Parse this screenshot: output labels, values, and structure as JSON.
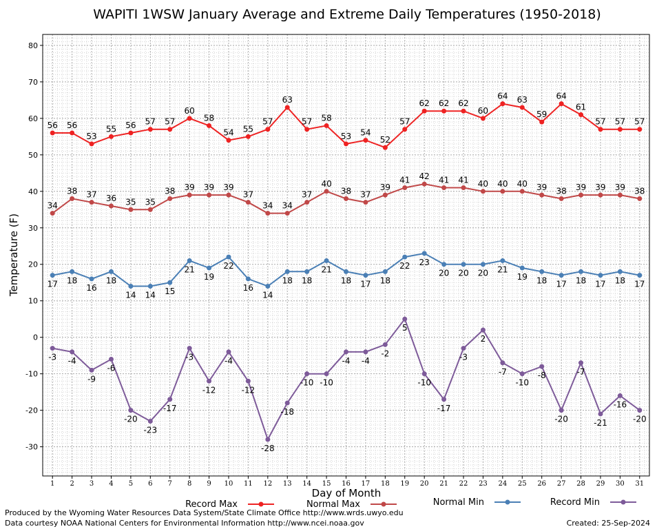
{
  "chart_data": {
    "type": "line",
    "title": "WAPITI 1WSW January Average and Extreme Daily Temperatures (1950-2018)",
    "xlabel": "Day of Month",
    "ylabel": "Temperature (F)",
    "ylim": [
      -38,
      83
    ],
    "yticks": [
      -30,
      -20,
      -10,
      0,
      10,
      20,
      30,
      40,
      50,
      60,
      70,
      80
    ],
    "x": [
      1,
      2,
      3,
      4,
      5,
      6,
      7,
      8,
      9,
      10,
      11,
      12,
      13,
      14,
      15,
      16,
      17,
      18,
      19,
      20,
      21,
      22,
      23,
      24,
      25,
      26,
      27,
      28,
      29,
      30,
      31
    ],
    "grid": true,
    "legend_position": "bottom",
    "series": [
      {
        "name": "Record Max",
        "color": "#ee2222",
        "label_pos": "above",
        "values": [
          56,
          56,
          53,
          55,
          56,
          57,
          57,
          60,
          58,
          54,
          55,
          57,
          63,
          57,
          58,
          53,
          54,
          52,
          57,
          62,
          62,
          62,
          60,
          64,
          63,
          59,
          64,
          61,
          57,
          57,
          57
        ]
      },
      {
        "name": "Normal Max",
        "color": "#c04848",
        "label_pos": "above",
        "values": [
          34,
          38,
          37,
          36,
          35,
          35,
          38,
          39,
          39,
          39,
          37,
          34,
          34,
          37,
          40,
          38,
          37,
          39,
          41,
          42,
          41,
          41,
          40,
          40,
          40,
          39,
          38,
          39,
          39,
          39,
          38
        ]
      },
      {
        "name": "Normal Min",
        "color": "#4a7fb5",
        "label_pos": "below",
        "values": [
          17,
          18,
          16,
          18,
          14,
          14,
          15,
          21,
          19,
          22,
          16,
          14,
          18,
          18,
          21,
          18,
          17,
          18,
          22,
          23,
          20,
          20,
          20,
          21,
          19,
          18,
          17,
          18,
          17,
          18,
          17
        ]
      },
      {
        "name": "Record Min",
        "color": "#7d5a99",
        "label_pos": "below",
        "values": [
          -3,
          -4,
          -9,
          -6,
          -20,
          -23,
          -17,
          -3,
          -12,
          -4,
          -12,
          -28,
          -18,
          -10,
          -10,
          -4,
          -4,
          -2,
          5,
          -10,
          -17,
          -3,
          2,
          -7,
          -10,
          -8,
          -20,
          -7,
          -21,
          -16,
          -20
        ]
      }
    ]
  },
  "footer": {
    "line1": "Produced by the Wyoming Water Resources Data System/State Climate Office http://www.wrds.uwyo.edu",
    "line2": "Data courtesy NOAA National Centers for Environmental Information http://www.ncei.noaa.gov",
    "created": "Created:  25-Sep-2024"
  },
  "colors": {
    "grid_minor": "#d4d4d4",
    "grid_major": "#a8a8a8",
    "axis": "#000000"
  }
}
